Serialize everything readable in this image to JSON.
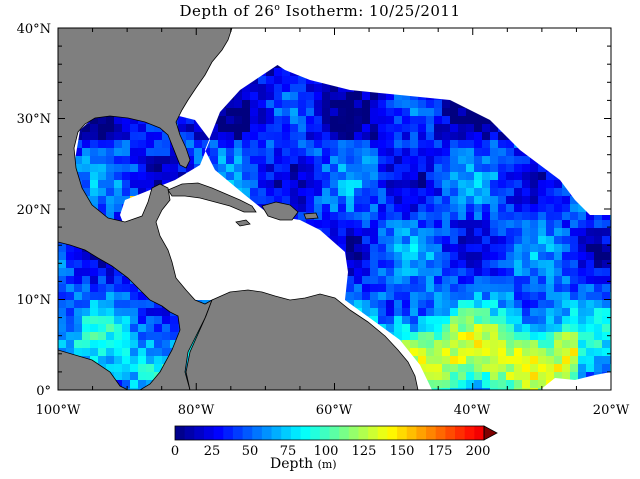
{
  "title": {
    "prefix": "Depth of 26",
    "degree": "o",
    "suffix": " Isotherm: 10/25/2011"
  },
  "map": {
    "projection": "equirectangular",
    "lon_range": [
      -100,
      -20
    ],
    "lat_range": [
      0,
      40
    ],
    "x_tick_labels": [
      "100°W",
      "80°W",
      "60°W",
      "40°W",
      "20°W"
    ],
    "y_tick_labels": [
      "40°N",
      "30°N",
      "20°N",
      "10°N",
      "0°"
    ],
    "land_color": "#7f7f7f",
    "no_data_color": "#ffffff",
    "grid": false
  },
  "colorbar": {
    "tick_labels": [
      "0",
      "25",
      "50",
      "75",
      "100",
      "125",
      "150",
      "175",
      "200"
    ],
    "range": [
      0,
      200
    ],
    "extend": "max",
    "label": "Depth",
    "unit": "(m)",
    "palette": [
      "#00007f",
      "#0000ff",
      "#0080ff",
      "#00ffff",
      "#80ff80",
      "#ffff00",
      "#ff8000",
      "#ff0000",
      "#7f0000"
    ]
  }
}
